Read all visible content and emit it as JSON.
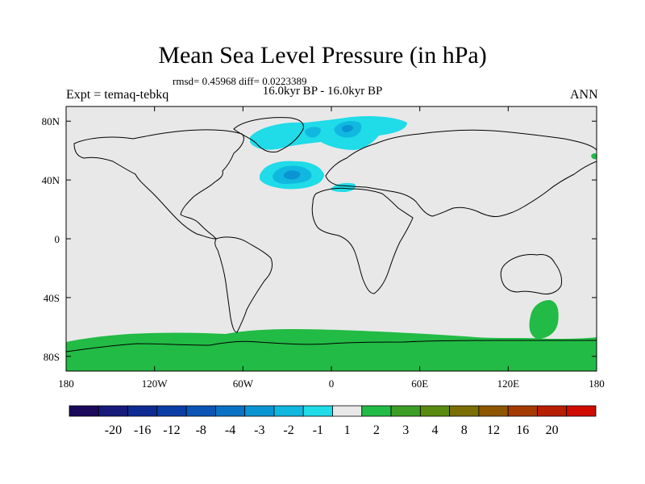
{
  "title": "Mean Sea Level Pressure (in hPa)",
  "stats": "rmsd= 0.45968 diff= 0.0223389",
  "period": "16.0kyr BP - 16.0kyr BP",
  "experiment": "Expt = temaq-tebkq",
  "season": "ANN",
  "map": {
    "lon_range": [
      -180,
      180
    ],
    "lat_range": [
      -90,
      90
    ],
    "background_color": "#e8e8e8",
    "x_ticks": [
      {
        "value": -180,
        "label": "180"
      },
      {
        "value": -120,
        "label": "120W"
      },
      {
        "value": -60,
        "label": "60W"
      },
      {
        "value": 0,
        "label": "0"
      },
      {
        "value": 60,
        "label": "60E"
      },
      {
        "value": 120,
        "label": "120E"
      },
      {
        "value": 180,
        "label": "180"
      }
    ],
    "y_ticks": [
      {
        "value": 80,
        "label": "80N"
      },
      {
        "value": 40,
        "label": "40N"
      },
      {
        "value": 0,
        "label": "0"
      },
      {
        "value": -40,
        "label": "40S"
      },
      {
        "value": -80,
        "label": "80S"
      }
    ]
  },
  "colorbar": {
    "colors": [
      "#1a0a5c",
      "#161a7a",
      "#0d2b92",
      "#0a3ea6",
      "#0a55b6",
      "#0a72c4",
      "#0a94d4",
      "#10b8e0",
      "#20dbe8",
      "#e8e8e8",
      "#22bb45",
      "#3d9e26",
      "#5a8a10",
      "#7a6e05",
      "#8f5600",
      "#a33a00",
      "#b81e00",
      "#d00c00"
    ],
    "labels": [
      "-20",
      "-16",
      "-12",
      "-8",
      "-4",
      "-3",
      "-2",
      "-1",
      "1",
      "2",
      "3",
      "4",
      "8",
      "12",
      "16",
      "20"
    ]
  }
}
